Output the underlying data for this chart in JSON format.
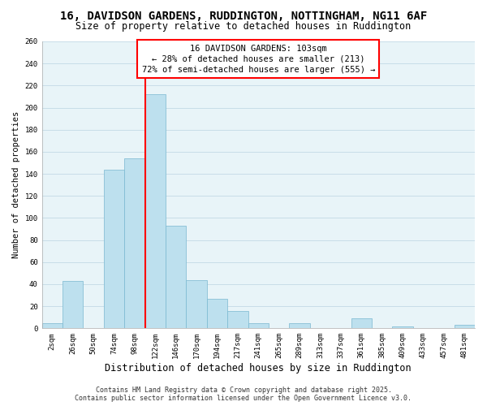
{
  "title": "16, DAVIDSON GARDENS, RUDDINGTON, NOTTINGHAM, NG11 6AF",
  "subtitle": "Size of property relative to detached houses in Ruddington",
  "xlabel": "Distribution of detached houses by size in Ruddington",
  "ylabel": "Number of detached properties",
  "bar_labels": [
    "2sqm",
    "26sqm",
    "50sqm",
    "74sqm",
    "98sqm",
    "122sqm",
    "146sqm",
    "170sqm",
    "194sqm",
    "217sqm",
    "241sqm",
    "265sqm",
    "289sqm",
    "313sqm",
    "337sqm",
    "361sqm",
    "385sqm",
    "409sqm",
    "433sqm",
    "457sqm",
    "481sqm"
  ],
  "bar_values": [
    5,
    43,
    0,
    144,
    154,
    212,
    93,
    44,
    27,
    16,
    5,
    0,
    5,
    0,
    0,
    9,
    0,
    2,
    0,
    0,
    3
  ],
  "bar_color": "#bde0ee",
  "bar_edge_color": "#7ab8d0",
  "vline_x": 4.5,
  "vline_color": "red",
  "annotation_line1": "16 DAVIDSON GARDENS: 103sqm",
  "annotation_line2": "← 28% of detached houses are smaller (213)",
  "annotation_line3": "72% of semi-detached houses are larger (555) →",
  "ylim": [
    0,
    260
  ],
  "yticks": [
    0,
    20,
    40,
    60,
    80,
    100,
    120,
    140,
    160,
    180,
    200,
    220,
    240,
    260
  ],
  "grid_color": "#c8dde8",
  "bg_color": "#e8f4f8",
  "footer_line1": "Contains HM Land Registry data © Crown copyright and database right 2025.",
  "footer_line2": "Contains public sector information licensed under the Open Government Licence v3.0.",
  "title_fontsize": 10,
  "subtitle_fontsize": 8.5,
  "xlabel_fontsize": 8.5,
  "ylabel_fontsize": 7.5,
  "tick_fontsize": 6.5,
  "footer_fontsize": 6,
  "annotation_fontsize": 7.5
}
